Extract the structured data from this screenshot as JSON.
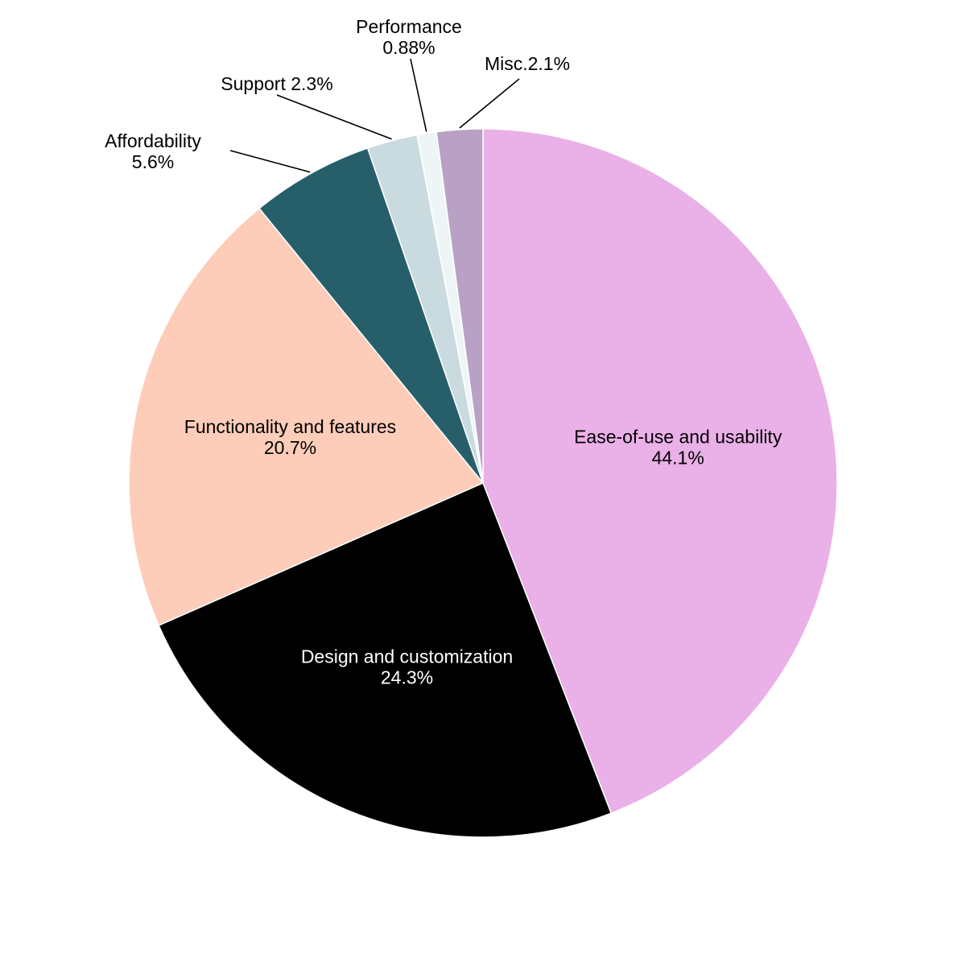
{
  "chart_data": {
    "type": "pie",
    "title": "",
    "start": "top",
    "direction": "clockwise",
    "slices": [
      {
        "label": "Ease-of-use and usability",
        "value": 44.1,
        "display": "44.1%",
        "color": "#eab0e8",
        "text_color": "#000000",
        "label_style": "inside"
      },
      {
        "label": "Design and customization",
        "value": 24.3,
        "display": "24.3%",
        "color": "#000000",
        "text_color": "#ffffff",
        "label_style": "inside"
      },
      {
        "label": "Functionality and features",
        "value": 20.7,
        "display": "20.7%",
        "color": "#fdcdb9",
        "text_color": "#000000",
        "label_style": "inside"
      },
      {
        "label": "Affordability",
        "value": 5.6,
        "display": "5.6%",
        "color": "#265f6a",
        "text_color": "#000000",
        "label_style": "callout"
      },
      {
        "label": "Support",
        "value": 2.3,
        "display": "2.3%",
        "color": "#c9dbdf",
        "text_color": "#000000",
        "label_style": "callout"
      },
      {
        "label": "Performance",
        "value": 0.88,
        "display": "0.88%",
        "color": "#eef5f6",
        "text_color": "#000000",
        "label_style": "callout"
      },
      {
        "label": "Misc.",
        "value": 2.1,
        "display": "2.1%",
        "color": "#b9a1c6",
        "text_color": "#000000",
        "label_style": "callout"
      }
    ]
  }
}
